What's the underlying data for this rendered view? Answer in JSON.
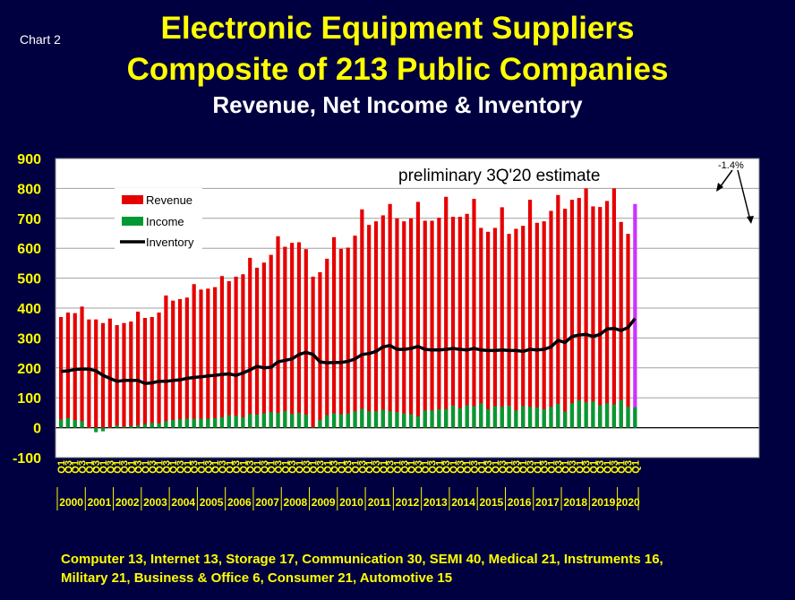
{
  "header": {
    "chart_tag": "Chart 2",
    "title_line1": "Electronic Equipment Suppliers",
    "title_line2": "Composite of 213 Public Companies",
    "subtitle": "Revenue, Net Income & Inventory"
  },
  "colors": {
    "background": "#000040",
    "plot_background": "#ffffff",
    "revenue": "#e60000",
    "income": "#009933",
    "inventory": "#000000",
    "estimate": "#cc33ff",
    "title": "#ffff00"
  },
  "chart_data": {
    "type": "bar",
    "annotation": "preliminary 3Q'20 estimate",
    "change_label": "-1.4%",
    "ylim": [
      -100,
      900
    ],
    "yticks": [
      -100,
      0,
      100,
      200,
      300,
      400,
      500,
      600,
      700,
      800,
      900
    ],
    "grid": true,
    "legend_position": "upper-left",
    "quarter_labels": [
      "Q1",
      "Q3"
    ],
    "years": [
      "2000",
      "2001",
      "2002",
      "2003",
      "2004",
      "2005",
      "2006",
      "2007",
      "2008",
      "2009",
      "2010",
      "2011",
      "2012",
      "2013",
      "2014",
      "2015",
      "2016",
      "2017",
      "2018",
      "2019",
      "2020"
    ],
    "series": [
      {
        "name": "Revenue",
        "values": [
          370,
          385,
          383,
          405,
          362,
          362,
          350,
          365,
          343,
          350,
          355,
          388,
          367,
          370,
          385,
          442,
          425,
          430,
          435,
          480,
          462,
          465,
          470,
          507,
          490,
          505,
          513,
          568,
          535,
          552,
          578,
          640,
          605,
          618,
          620,
          597,
          505,
          520,
          565,
          637,
          598,
          602,
          642,
          730,
          678,
          690,
          710,
          748,
          700,
          690,
          700,
          755,
          692,
          692,
          702,
          772,
          705,
          705,
          715,
          765,
          668,
          655,
          668,
          737,
          648,
          665,
          675,
          762,
          685,
          690,
          725,
          778,
          732,
          762,
          768,
          800,
          740,
          738,
          758,
          800,
          688,
          648,
          748
        ],
        "estimate_last": true
      },
      {
        "name": "Income",
        "values": [
          28,
          32,
          26,
          22,
          0,
          -15,
          -12,
          2,
          8,
          4,
          6,
          8,
          12,
          16,
          15,
          22,
          26,
          28,
          30,
          30,
          30,
          30,
          32,
          35,
          42,
          40,
          35,
          46,
          44,
          48,
          52,
          50,
          56,
          46,
          50,
          44,
          2,
          26,
          42,
          48,
          45,
          48,
          55,
          63,
          55,
          55,
          60,
          56,
          52,
          48,
          45,
          38,
          58,
          58,
          62,
          62,
          74,
          65,
          75,
          72,
          82,
          62,
          72,
          70,
          74,
          58,
          72,
          70,
          68,
          62,
          70,
          80,
          54,
          82,
          92,
          85,
          88,
          75,
          82,
          78,
          92,
          70,
          68
        ]
      },
      {
        "name": "Inventory",
        "values": [
          188,
          190,
          195,
          196,
          196,
          190,
          175,
          165,
          155,
          158,
          158,
          158,
          148,
          150,
          155,
          155,
          158,
          160,
          165,
          168,
          170,
          173,
          175,
          178,
          180,
          175,
          183,
          193,
          205,
          200,
          202,
          220,
          225,
          230,
          245,
          252,
          245,
          220,
          217,
          218,
          218,
          222,
          230,
          245,
          248,
          255,
          270,
          275,
          262,
          262,
          265,
          272,
          262,
          260,
          260,
          262,
          265,
          262,
          260,
          265,
          260,
          258,
          258,
          260,
          258,
          258,
          255,
          262,
          260,
          262,
          270,
          292,
          285,
          305,
          310,
          312,
          305,
          312,
          330,
          332,
          325,
          335,
          365
        ]
      }
    ]
  },
  "footer": {
    "line1": "Computer 13, Internet 13, Storage 17, Communication 30, SEMI 40, Medical 21, Instruments 16,",
    "line2": "Military 21, Business & Office 6, Consumer 21, Automotive 15"
  }
}
